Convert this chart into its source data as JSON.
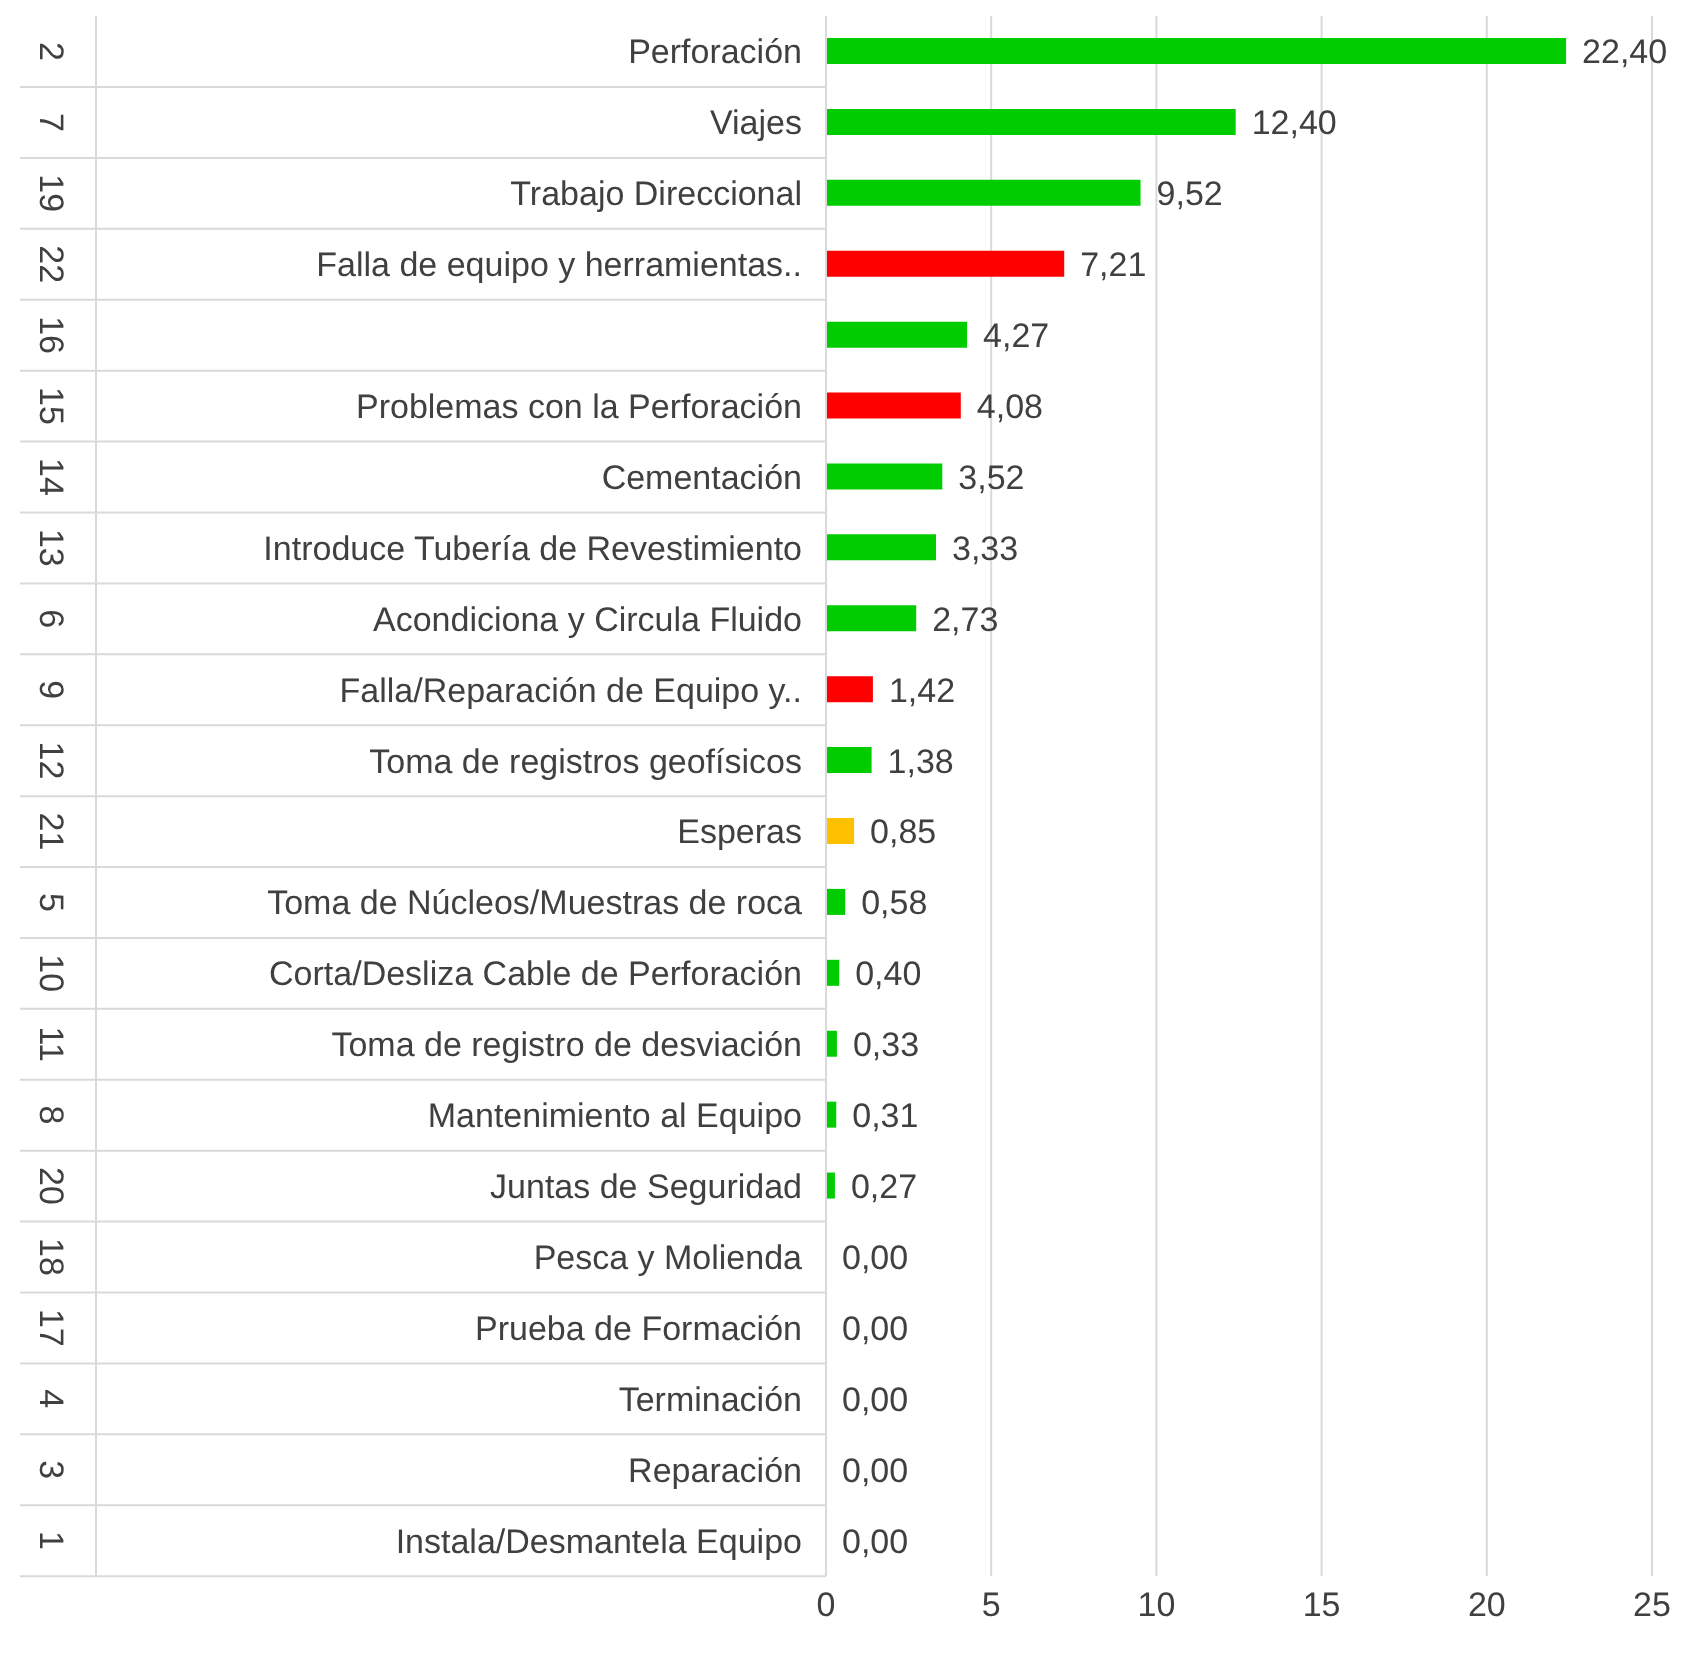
{
  "chart_data": {
    "type": "bar",
    "orientation": "horizontal",
    "categories": [
      "Perforación",
      "Viajes",
      "Trabajo Direccional",
      "Falla de equipo y herramientas..",
      null,
      "Problemas con la Perforación",
      "Cementación",
      "Introduce Tubería de Revestimiento",
      "Acondiciona y Circula Fluido",
      "Falla/Reparación de Equipo y..",
      "Toma de registros geofísicos",
      "Esperas",
      "Toma de Núcleos/Muestras de roca",
      "Corta/Desliza Cable de Perforación",
      "Toma de registro de desviación",
      "Mantenimiento al Equipo",
      "Juntas de Seguridad",
      "Pesca y Molienda",
      "Prueba de Formación",
      "Terminación",
      "Reparación",
      "Instala/Desmantela Equipo"
    ],
    "y2_categories": [
      "2",
      "7",
      "19",
      "22",
      "16",
      "15",
      "14",
      "13",
      "6",
      "9",
      "12",
      "21",
      "5",
      "10",
      "11",
      "8",
      "20",
      "18",
      "17",
      "4",
      "3",
      "1"
    ],
    "values": [
      22.4,
      12.4,
      9.52,
      7.21,
      4.27,
      4.08,
      3.52,
      3.33,
      2.73,
      1.42,
      1.38,
      0.85,
      0.58,
      0.4,
      0.33,
      0.31,
      0.27,
      0.0,
      0.0,
      0.0,
      0.0,
      0.0
    ],
    "value_labels": [
      "22,40",
      "12,40",
      "9,52",
      "7,21",
      "4,27",
      "4,08",
      "3,52",
      "3,33",
      "2,73",
      "1,42",
      "1,38",
      "0,85",
      "0,58",
      "0,40",
      "0,33",
      "0,31",
      "0,27",
      "0,00",
      "0,00",
      "0,00",
      "0,00",
      "0,00"
    ],
    "colors": [
      "#00cc00",
      "#00cc00",
      "#00cc00",
      "#ff0000",
      "#00cc00",
      "#ff0000",
      "#00cc00",
      "#00cc00",
      "#00cc00",
      "#ff0000",
      "#00cc00",
      "#ffc000",
      "#00cc00",
      "#00cc00",
      "#00cc00",
      "#00cc00",
      "#00cc00",
      "#00cc00",
      "#00cc00",
      "#00cc00",
      "#00cc00",
      "#00cc00"
    ],
    "xlim": [
      0,
      25
    ],
    "xticks": [
      0,
      5,
      10,
      15,
      20,
      25
    ],
    "grid": "x",
    "legend": false
  }
}
